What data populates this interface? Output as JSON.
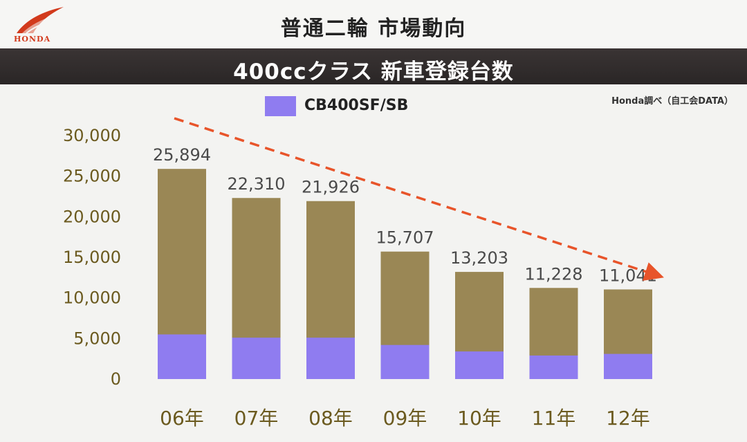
{
  "header": {
    "brand": "HONDA",
    "title": "普通二輪 市場動向",
    "subtitle": "400ccクラス 新車登録台数"
  },
  "legend": {
    "label": "CB400SF/SB",
    "color": "#8f7cf0"
  },
  "source_note": "Honda調べ（自工会DATA）",
  "colors": {
    "total_bar": "#9a8755",
    "model_bar": "#8f7cf0",
    "trend_arrow": "#e8542a",
    "brand_red": "#d23a1c"
  },
  "chart_data": {
    "type": "bar",
    "stacked": true,
    "categories": [
      "06年",
      "07年",
      "08年",
      "09年",
      "10年",
      "11年",
      "12年"
    ],
    "series": [
      {
        "name": "CB400SF/SB",
        "values": [
          5500,
          5100,
          5100,
          4200,
          3400,
          2900,
          3100
        ]
      },
      {
        "values": [
          20394,
          17210,
          16826,
          11507,
          9803,
          8328,
          7941
        ]
      }
    ],
    "totals": [
      25894,
      22310,
      21926,
      15707,
      13203,
      11228,
      11041
    ],
    "data_labels": [
      "25,894",
      "22,310",
      "21,926",
      "15,707",
      "13,203",
      "11,228",
      "11,041"
    ],
    "ylim": [
      0,
      30000
    ],
    "yticks": [
      0,
      5000,
      10000,
      15000,
      20000,
      25000,
      30000
    ],
    "ytick_labels": [
      "0",
      "5,000",
      "10,000",
      "15,000",
      "20,000",
      "25,000",
      "30,000"
    ],
    "grid": false,
    "trend_arrow": {
      "direction": "down",
      "style": "dashed"
    },
    "legend_position": "top"
  }
}
